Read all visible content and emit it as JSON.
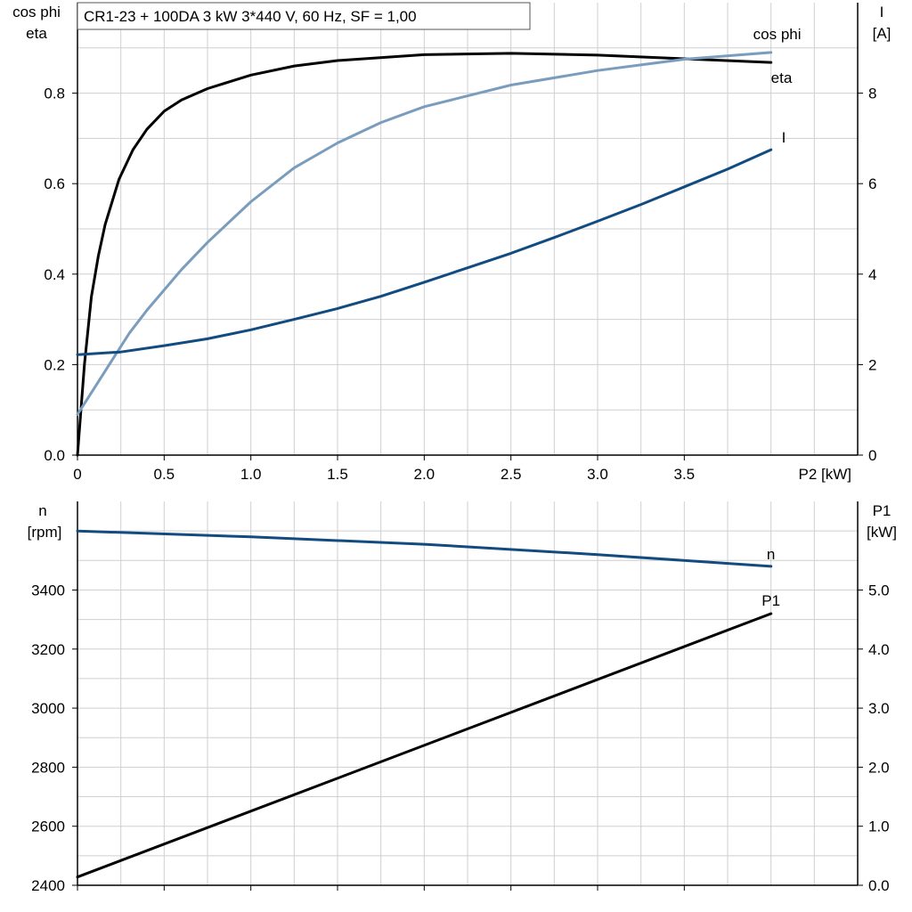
{
  "title": "CR1-23 + 100DA   3 kW   3*440 V, 60 Hz, SF = 1,00",
  "chart_data": [
    {
      "type": "line",
      "name": "motor-efficiency-chart",
      "xlabel": "P2 [kW]",
      "xlim": [
        0,
        4.5
      ],
      "xticks": [
        "0",
        "0.5",
        "1.0",
        "1.5",
        "2.0",
        "2.5",
        "3.0",
        "3.5"
      ],
      "xtick_values": [
        0,
        0.5,
        1.0,
        1.5,
        2.0,
        2.5,
        3.0,
        3.5
      ],
      "ylabel_left": [
        "cos phi",
        "eta"
      ],
      "ylim_left": [
        0,
        1.0
      ],
      "yticks_left": [
        "0.0",
        "0.2",
        "0.4",
        "0.6",
        "0.8"
      ],
      "ytick_values_left": [
        0,
        0.2,
        0.4,
        0.6,
        0.8
      ],
      "ylabel_right": [
        "I",
        "[A]"
      ],
      "ylim_right": [
        0,
        10
      ],
      "yticks_right": [
        "0",
        "2",
        "4",
        "6",
        "8"
      ],
      "ytick_values_right": [
        0,
        2,
        4,
        6,
        8
      ],
      "grid": true,
      "series": [
        {
          "name": "eta",
          "axis": "left",
          "color": "#000000",
          "x": [
            0,
            0.04,
            0.08,
            0.12,
            0.16,
            0.24,
            0.32,
            0.4,
            0.5,
            0.6,
            0.75,
            1.0,
            1.25,
            1.5,
            2.0,
            2.5,
            3.0,
            3.5,
            4.0
          ],
          "y": [
            0,
            0.2,
            0.35,
            0.44,
            0.51,
            0.61,
            0.675,
            0.72,
            0.76,
            0.785,
            0.81,
            0.84,
            0.86,
            0.872,
            0.885,
            0.888,
            0.884,
            0.876,
            0.868
          ]
        },
        {
          "name": "cos phi",
          "axis": "left",
          "color": "#7a9cbd",
          "x": [
            0,
            0.1,
            0.2,
            0.3,
            0.4,
            0.5,
            0.6,
            0.75,
            1.0,
            1.25,
            1.5,
            1.75,
            2.0,
            2.5,
            3.0,
            3.5,
            4.0
          ],
          "y": [
            0.09,
            0.15,
            0.21,
            0.27,
            0.32,
            0.365,
            0.41,
            0.47,
            0.56,
            0.635,
            0.69,
            0.735,
            0.77,
            0.818,
            0.85,
            0.875,
            0.89
          ]
        },
        {
          "name": "I",
          "axis": "right",
          "color": "#124b80",
          "x": [
            0,
            0.25,
            0.5,
            0.75,
            1.0,
            1.25,
            1.5,
            1.75,
            2.0,
            2.25,
            2.5,
            2.75,
            3.0,
            3.25,
            3.5,
            3.75,
            4.0
          ],
          "y": [
            2.22,
            2.28,
            2.42,
            2.57,
            2.77,
            3.0,
            3.24,
            3.51,
            3.82,
            4.14,
            4.46,
            4.81,
            5.17,
            5.54,
            5.93,
            6.32,
            6.75
          ]
        }
      ]
    },
    {
      "type": "line",
      "name": "speed-power-chart",
      "xlim": [
        0,
        4.5
      ],
      "xtick_values": [
        0,
        0.5,
        1.0,
        1.5,
        2.0,
        2.5,
        3.0,
        3.5
      ],
      "ylabel_left": [
        "n",
        "[rpm]"
      ],
      "ylim_left": [
        2400,
        3700
      ],
      "yticks_left": [
        "2400",
        "2600",
        "2800",
        "3000",
        "3200",
        "3400"
      ],
      "ytick_values_left": [
        2400,
        2600,
        2800,
        3000,
        3200,
        3400
      ],
      "ylabel_right": [
        "P1",
        "[kW]"
      ],
      "ylim_right": [
        0,
        6.5
      ],
      "yticks_right": [
        "0.0",
        "1.0",
        "2.0",
        "3.0",
        "4.0",
        "5.0"
      ],
      "ytick_values_right": [
        0,
        1.0,
        2.0,
        3.0,
        4.0,
        5.0
      ],
      "grid": true,
      "series": [
        {
          "name": "n",
          "axis": "left",
          "color": "#124b80",
          "x": [
            0,
            1.0,
            2.0,
            3.0,
            4.0
          ],
          "y": [
            3600,
            3580,
            3555,
            3520,
            3480
          ]
        },
        {
          "name": "P1",
          "axis": "right",
          "color": "#000000",
          "x": [
            0,
            4.0
          ],
          "y": [
            0.14,
            4.6
          ]
        }
      ]
    }
  ]
}
